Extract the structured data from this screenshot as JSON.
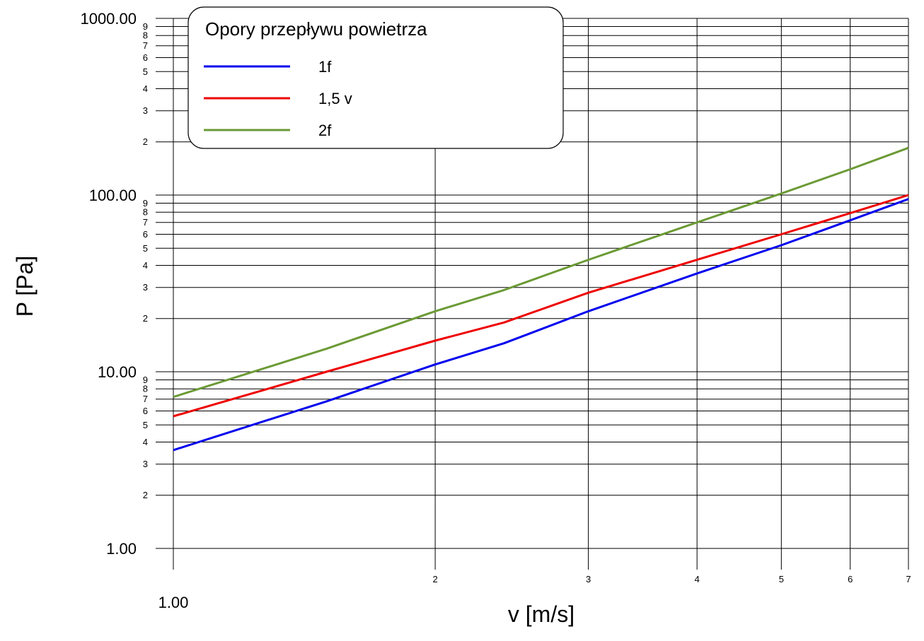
{
  "chart_data": {
    "type": "line",
    "title": "",
    "xlabel": "v [m/s]",
    "ylabel": "P [Pa]",
    "x_scale": "log",
    "y_scale": "log",
    "xlim": [
      1,
      7
    ],
    "ylim": [
      1,
      1000
    ],
    "grid": true,
    "x_major_labels": [
      {
        "v": 1,
        "t": "1.00"
      }
    ],
    "x_minor_labels": [
      {
        "v": 2,
        "t": "2"
      },
      {
        "v": 3,
        "t": "3"
      },
      {
        "v": 4,
        "t": "4"
      },
      {
        "v": 5,
        "t": "5"
      },
      {
        "v": 6,
        "t": "6"
      },
      {
        "v": 7,
        "t": "7"
      }
    ],
    "y_major_labels": [
      {
        "v": 1,
        "t": "1.00"
      },
      {
        "v": 10,
        "t": "10.00"
      },
      {
        "v": 100,
        "t": "100.00"
      },
      {
        "v": 1000,
        "t": "1000.00"
      }
    ],
    "y_minor_digits": [
      "2",
      "3",
      "4",
      "5",
      "6",
      "7",
      "8",
      "9"
    ],
    "legend": {
      "title": "Opory przepływu powietrza",
      "position": "top-left"
    },
    "series": [
      {
        "name": "1f",
        "color": "#0000ee",
        "x": [
          1.0,
          1.5,
          2.0,
          2.4,
          3.0,
          4.0,
          5.0,
          6.0,
          7.0
        ],
        "y": [
          3.6,
          6.8,
          11.0,
          14.5,
          22.0,
          36.0,
          52.0,
          72.0,
          95.0
        ]
      },
      {
        "name": "1,5 v",
        "color": "#ee0000",
        "x": [
          1.0,
          1.5,
          2.0,
          2.4,
          3.0,
          4.0,
          5.0,
          6.0,
          7.0
        ],
        "y": [
          5.6,
          10.0,
          15.0,
          19.0,
          28.0,
          43.0,
          60.0,
          79.0,
          100.0
        ]
      },
      {
        "name": "2f",
        "color": "#6b9a35",
        "x": [
          1.0,
          1.5,
          2.0,
          2.4,
          3.0,
          4.0,
          5.0,
          6.0,
          7.0
        ],
        "y": [
          7.2,
          13.5,
          22.0,
          29.0,
          43.0,
          70.0,
          102.0,
          140.0,
          185.0
        ]
      }
    ]
  }
}
